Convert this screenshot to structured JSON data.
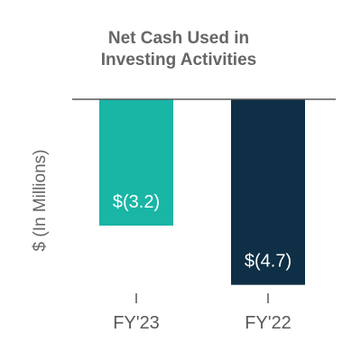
{
  "chart_data": {
    "type": "bar",
    "title_lines": [
      "Net Cash Used in",
      "Investing Activities"
    ],
    "ylabel": "$ (In Millions)",
    "xlabel": "",
    "categories": [
      "FY'23",
      "FY'22"
    ],
    "values": [
      -3.2,
      -4.7
    ],
    "data_labels": [
      "$(3.2)",
      "$(4.7)"
    ],
    "colors": [
      "#19b5a5",
      "#0e2f45"
    ],
    "ylim": [
      -5.0,
      0
    ],
    "grid": false,
    "legend": "none",
    "axis_color": "#595959"
  }
}
